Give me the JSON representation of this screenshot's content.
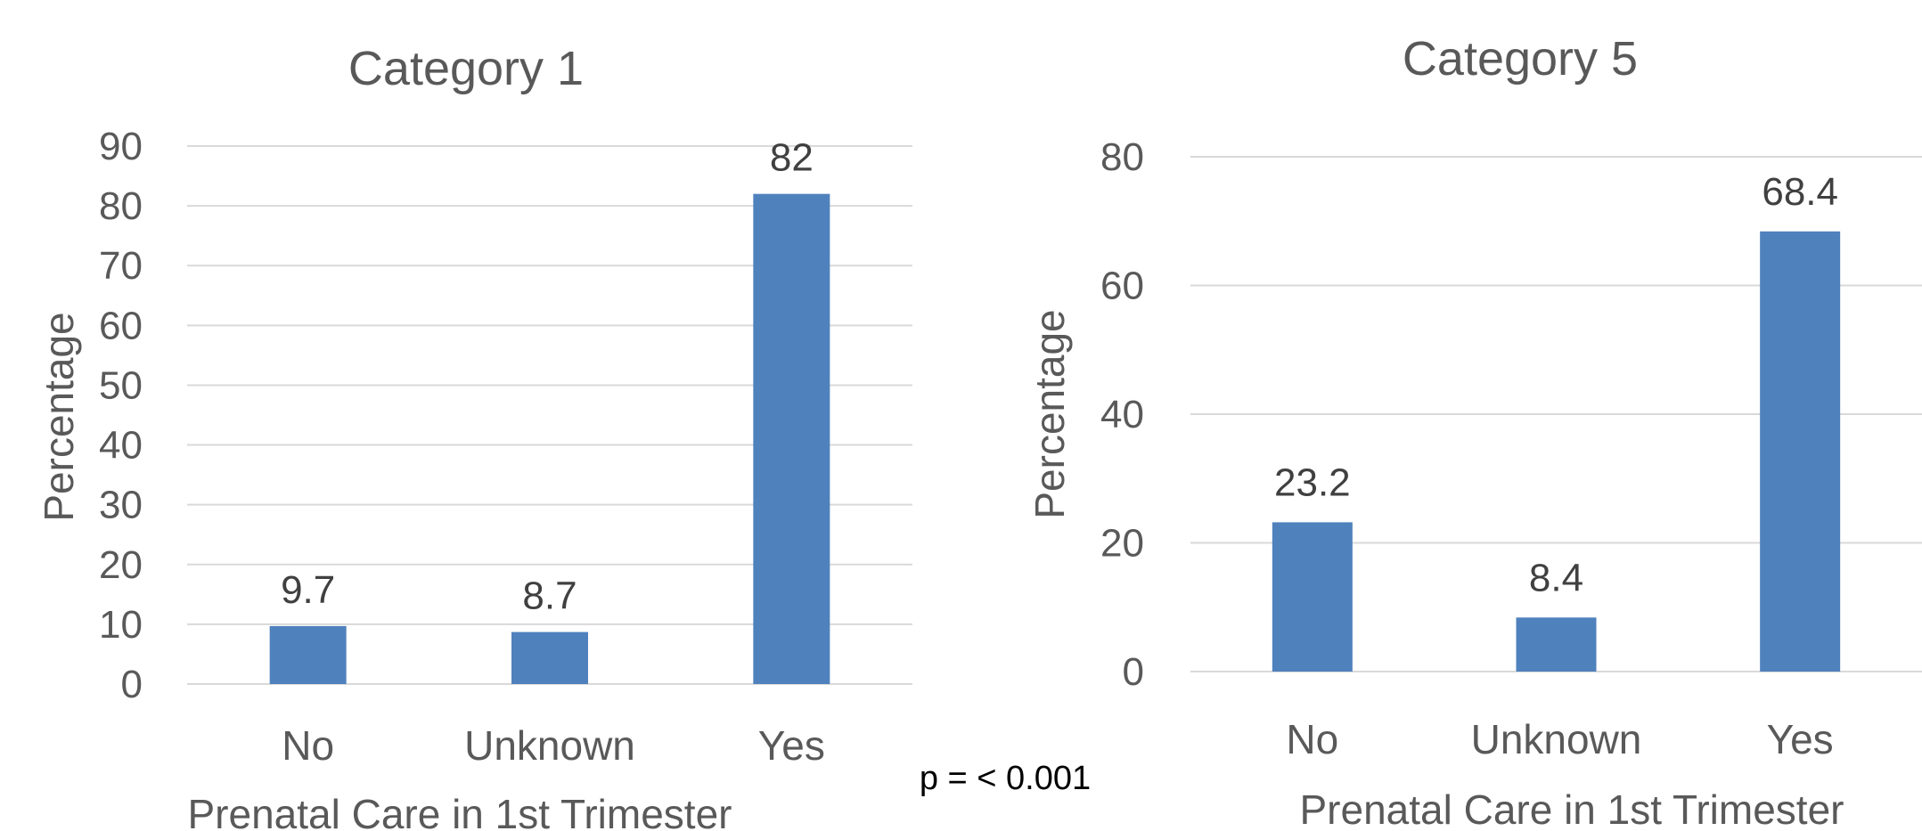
{
  "chart_data": [
    {
      "type": "bar",
      "title": "Category 1",
      "xlabel": "Prenatal Care in 1st Trimester",
      "ylabel": "Percentage",
      "categories": [
        "No",
        "Unknown",
        "Yes"
      ],
      "values": [
        9.7,
        8.7,
        82
      ],
      "value_labels": [
        "9.7",
        "8.7",
        "82"
      ],
      "yticks": [
        "0",
        "10",
        "20",
        "30",
        "40",
        "50",
        "60",
        "70",
        "80",
        "90"
      ],
      "ylim": [
        0,
        90
      ],
      "grid": true,
      "bar_color": "#4f81bd"
    },
    {
      "type": "bar",
      "title": "Category 5",
      "xlabel": "Prenatal Care in 1st Trimester",
      "ylabel": "Percentage",
      "categories": [
        "No",
        "Unknown",
        "Yes"
      ],
      "values": [
        23.2,
        8.4,
        68.4
      ],
      "value_labels": [
        "23.2",
        "8.4",
        "68.4"
      ],
      "yticks": [
        "0",
        "20",
        "40",
        "60",
        "80"
      ],
      "ylim": [
        0,
        80
      ],
      "grid": true,
      "bar_color": "#4f81bd"
    }
  ],
  "annotation": "p = < 0.001",
  "colors": {
    "grid": "#d9d9d9",
    "text": "#595959"
  }
}
